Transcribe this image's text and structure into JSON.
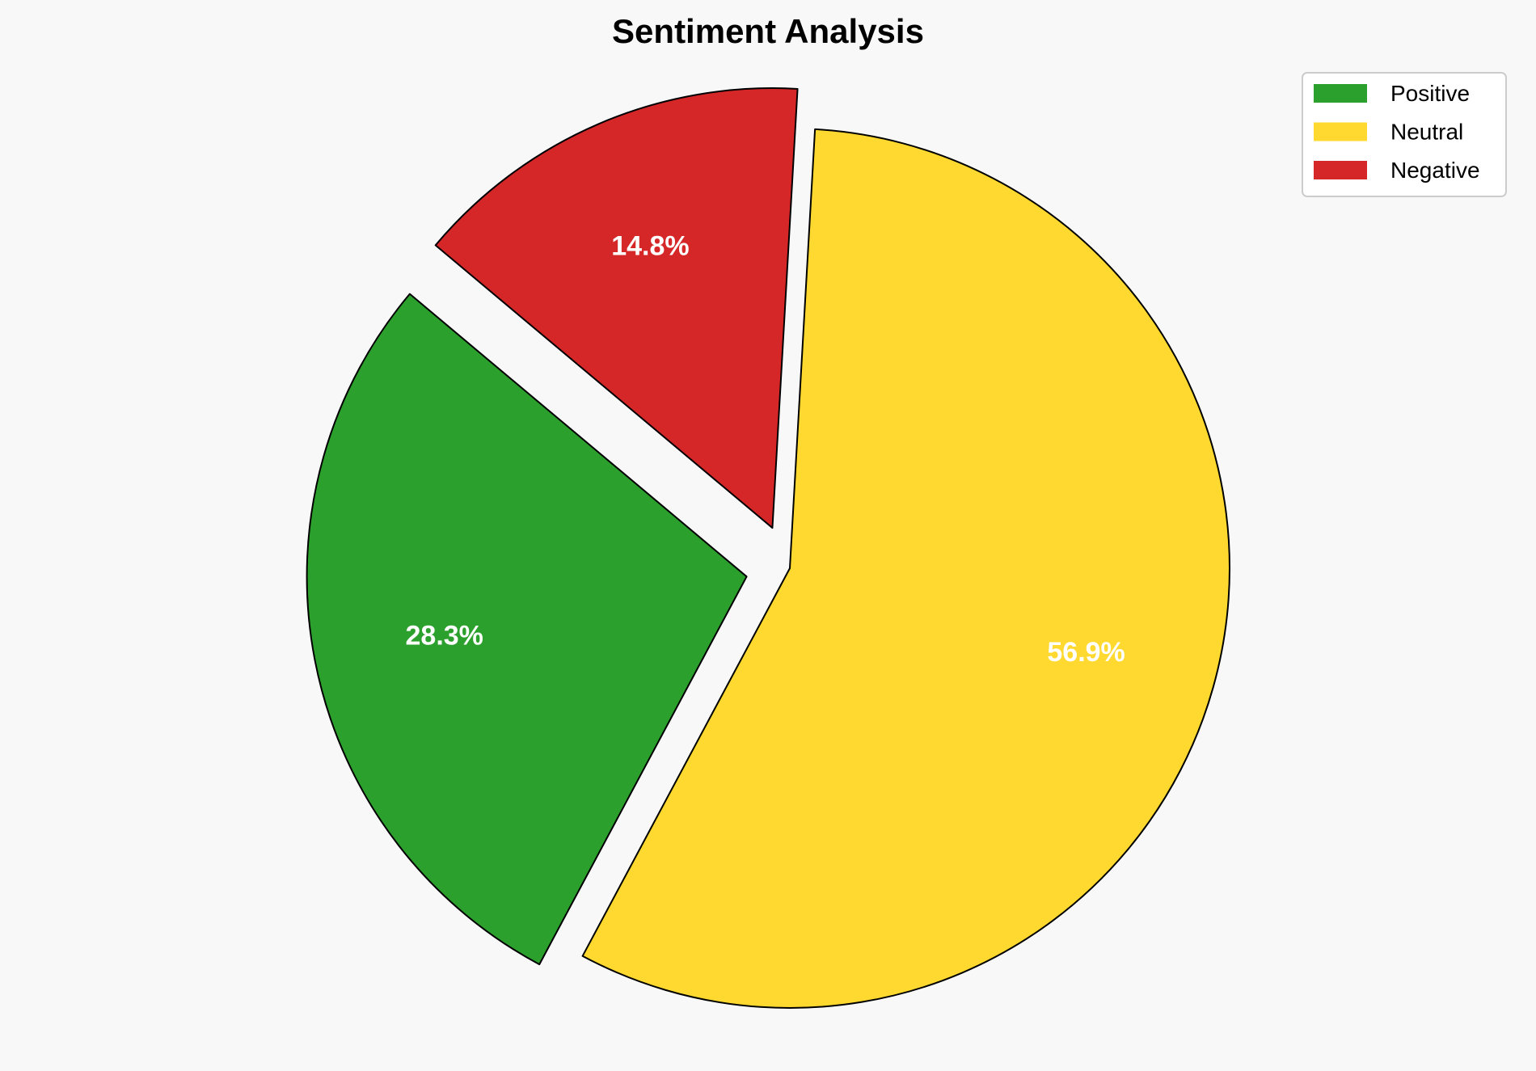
{
  "chart_data": {
    "type": "pie",
    "title": "Sentiment Analysis",
    "categories": [
      "Positive",
      "Neutral",
      "Negative"
    ],
    "values": [
      28.3,
      56.9,
      14.8
    ],
    "labels": [
      "28.3%",
      "56.9%",
      "14.8%"
    ],
    "colors": [
      "#2ca02c",
      "#ffd92f",
      "#d62728"
    ],
    "explode": [
      0.1,
      0,
      0.1
    ],
    "start_angle": 140,
    "direction": "counterclockwise",
    "legend_placement": "top-right"
  }
}
